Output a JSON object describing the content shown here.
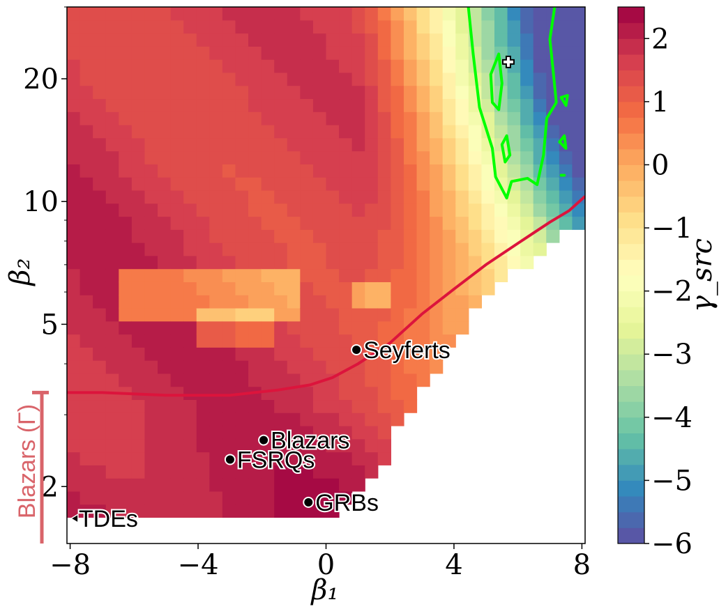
{
  "chart_data": {
    "type": "heatmap",
    "xlabel": "β₁",
    "ylabel": "β₂",
    "colorbar_label": "γ_src",
    "xlim": [
      -8.1,
      8.1
    ],
    "ylim_log": [
      1.45,
      30.0
    ],
    "xticks": [
      {
        "value": -8,
        "label": "−8"
      },
      {
        "value": -4,
        "label": "−4"
      },
      {
        "value": 0,
        "label": "0"
      },
      {
        "value": 4,
        "label": "4"
      },
      {
        "value": 8,
        "label": "8"
      }
    ],
    "yticks": [
      {
        "value": 2,
        "label": "2"
      },
      {
        "value": 5,
        "label": "5"
      },
      {
        "value": 10,
        "label": "10"
      },
      {
        "value": 20,
        "label": "20"
      }
    ],
    "colorbar_range": [
      -6,
      2.5
    ],
    "colorbar_ticks": [
      {
        "value": 2,
        "label": "2"
      },
      {
        "value": 1,
        "label": "1"
      },
      {
        "value": 0,
        "label": "0"
      },
      {
        "value": -1,
        "label": "−1"
      },
      {
        "value": -2,
        "label": "−2"
      },
      {
        "value": -3,
        "label": "−3"
      },
      {
        "value": -4,
        "label": "−4"
      },
      {
        "value": -5,
        "label": "−5"
      },
      {
        "value": -6,
        "label": "−6"
      }
    ],
    "colormap": "Spectral",
    "sources": [
      {
        "name": "Seyferts",
        "beta1": 0.95,
        "beta2": 4.33,
        "marker": "circle"
      },
      {
        "name": "Blazars",
        "beta1": -1.95,
        "beta2": 2.6,
        "marker": "circle"
      },
      {
        "name": "FSRQs",
        "beta1": -3.0,
        "beta2": 2.33,
        "marker": "circle"
      },
      {
        "name": "GRBs",
        "beta1": -0.55,
        "beta2": 1.83,
        "marker": "circle"
      },
      {
        "name": "TDEs",
        "beta1": -7.95,
        "beta2": 1.67,
        "marker": "triangle-left"
      }
    ],
    "blazar_range": {
      "label": "Blazars (Γ)",
      "beta2_min": 1.45,
      "beta2_max": 3.4,
      "color": "#d9646a"
    },
    "best_fit_marker": {
      "beta1": 5.7,
      "beta2": 22.0,
      "marker": "plus"
    },
    "red_curve": {
      "color": "#dc143c",
      "points": [
        [
          -8.1,
          3.4
        ],
        [
          -7.0,
          3.4
        ],
        [
          -5.0,
          3.35
        ],
        [
          -3.0,
          3.35
        ],
        [
          -1.5,
          3.45
        ],
        [
          -0.5,
          3.55
        ],
        [
          0.2,
          3.7
        ],
        [
          1.0,
          4.0
        ],
        [
          2.0,
          4.5
        ],
        [
          3.0,
          5.3
        ],
        [
          4.0,
          6.1
        ],
        [
          5.0,
          7.0
        ],
        [
          6.0,
          7.9
        ],
        [
          7.0,
          8.9
        ],
        [
          7.6,
          9.5
        ],
        [
          8.1,
          10.3
        ]
      ]
    },
    "green_contour": {
      "color": "#00ff00",
      "level_description": "best-fit region boundary",
      "outer": [
        [
          4.45,
          30.0
        ],
        [
          4.6,
          23.0
        ],
        [
          4.8,
          17.0
        ],
        [
          5.2,
          13.5
        ],
        [
          5.3,
          11.5
        ],
        [
          5.65,
          10.2
        ],
        [
          5.8,
          11.2
        ],
        [
          6.3,
          11.4
        ],
        [
          6.6,
          11.0
        ],
        [
          6.8,
          13.0
        ],
        [
          6.9,
          16.0
        ],
        [
          7.2,
          17.5
        ],
        [
          7.1,
          21.0
        ],
        [
          7.0,
          25.0
        ],
        [
          7.15,
          30.0
        ]
      ],
      "islands": [
        [
          [
            5.15,
            20.5
          ],
          [
            5.4,
            23.0
          ],
          [
            5.5,
            19.5
          ],
          [
            5.4,
            16.8
          ],
          [
            5.2,
            17.5
          ]
        ],
        [
          [
            5.5,
            13.8
          ],
          [
            5.65,
            14.5
          ],
          [
            5.75,
            13.0
          ],
          [
            5.6,
            12.5
          ]
        ],
        [
          [
            7.3,
            14.0
          ],
          [
            7.45,
            14.5
          ],
          [
            7.5,
            13.5
          ]
        ],
        [
          [
            7.35,
            18.0
          ],
          [
            7.55,
            18.2
          ],
          [
            7.5,
            17.2
          ]
        ],
        [
          [
            7.35,
            11.6
          ],
          [
            7.45,
            11.6
          ]
        ]
      ]
    }
  }
}
